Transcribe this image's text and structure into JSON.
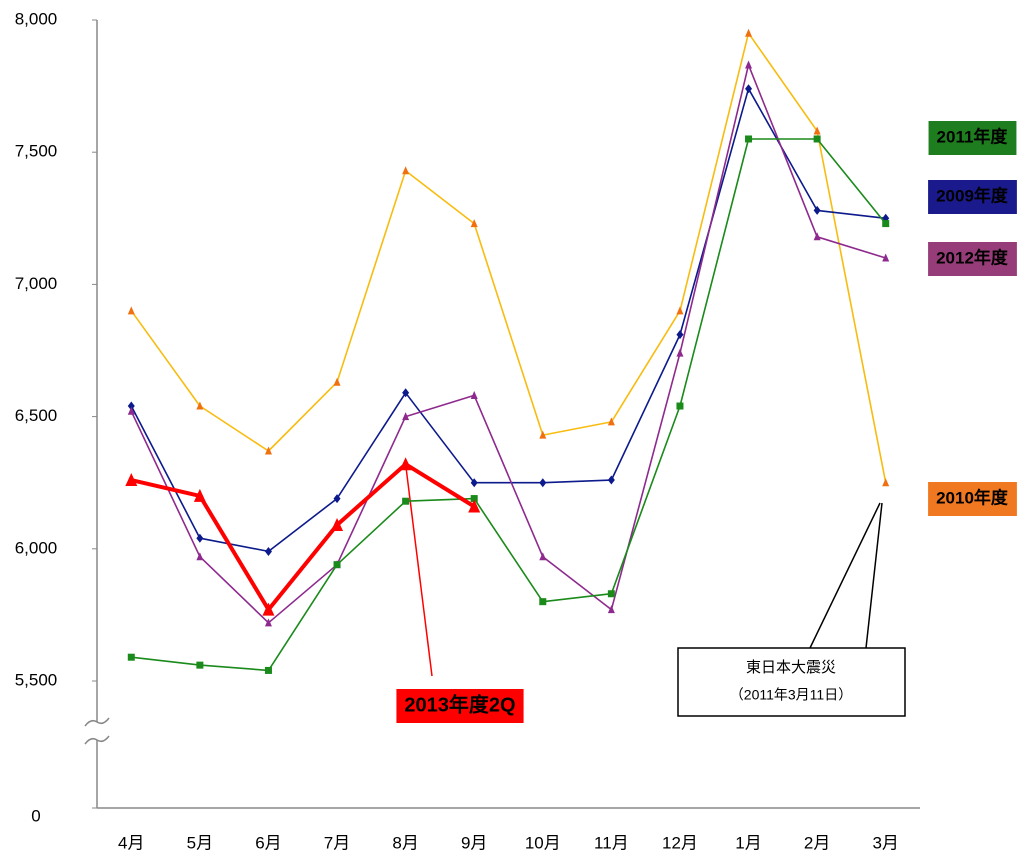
{
  "chart_data": {
    "type": "line",
    "categories": [
      "4月",
      "5月",
      "6月",
      "7月",
      "8月",
      "9月",
      "10月",
      "11月",
      "12月",
      "1月",
      "2月",
      "3月"
    ],
    "ylim": [
      0,
      8000
    ],
    "yticks": [
      0,
      {
        "value": 5500,
        "label": "5,500"
      },
      {
        "value": 6000,
        "label": "6,000"
      },
      {
        "value": 6500,
        "label": "6,500"
      },
      {
        "value": 7000,
        "label": "7,000"
      },
      {
        "value": 7500,
        "label": "7,500"
      },
      {
        "value": 8000,
        "label": "8,000"
      }
    ],
    "axis_break": true,
    "grid": false,
    "series": [
      {
        "name": "2010年度",
        "color": "#f8bc10",
        "marker_color": "#f07010",
        "label_color": "#f07820",
        "marker": "triangle",
        "values": [
          6900,
          6540,
          6370,
          6630,
          7430,
          7230,
          6430,
          6480,
          6900,
          7950,
          7580,
          6250
        ]
      },
      {
        "name": "2009年度",
        "color": "#0c1a8c",
        "marker_color": "#0c1a8c",
        "label_color": "#1a1a8c",
        "marker": "diamond",
        "values": [
          6540,
          6040,
          5990,
          6190,
          6590,
          6250,
          6250,
          6260,
          6810,
          7740,
          7280,
          7250
        ]
      },
      {
        "name": "2012年度",
        "color": "#8e2a8e",
        "marker_color": "#8e2a8e",
        "label_color": "#963c78",
        "marker": "triangle",
        "values": [
          6520,
          5970,
          5720,
          5940,
          6500,
          6580,
          5970,
          5770,
          6740,
          7830,
          7180,
          7100
        ]
      },
      {
        "name": "2011年度",
        "color": "#1a8a1a",
        "marker_color": "#1a8a1a",
        "label_color": "#1e7d1e",
        "marker": "square",
        "values": [
          5590,
          5560,
          5540,
          5940,
          6180,
          6190,
          5800,
          5830,
          6540,
          7550,
          7550,
          7230
        ]
      },
      {
        "name": "2013年度2Q",
        "color": "#ff0000",
        "marker_color": "#ff0000",
        "label_color": "#ff0000",
        "marker": "triangle",
        "width": 4,
        "values": [
          6260,
          6200,
          5770,
          6090,
          6320,
          6160,
          null,
          null,
          null,
          null,
          null,
          null
        ]
      }
    ],
    "annotation": [
      "東日本大震災",
      "（2011年3月11日）"
    ]
  }
}
